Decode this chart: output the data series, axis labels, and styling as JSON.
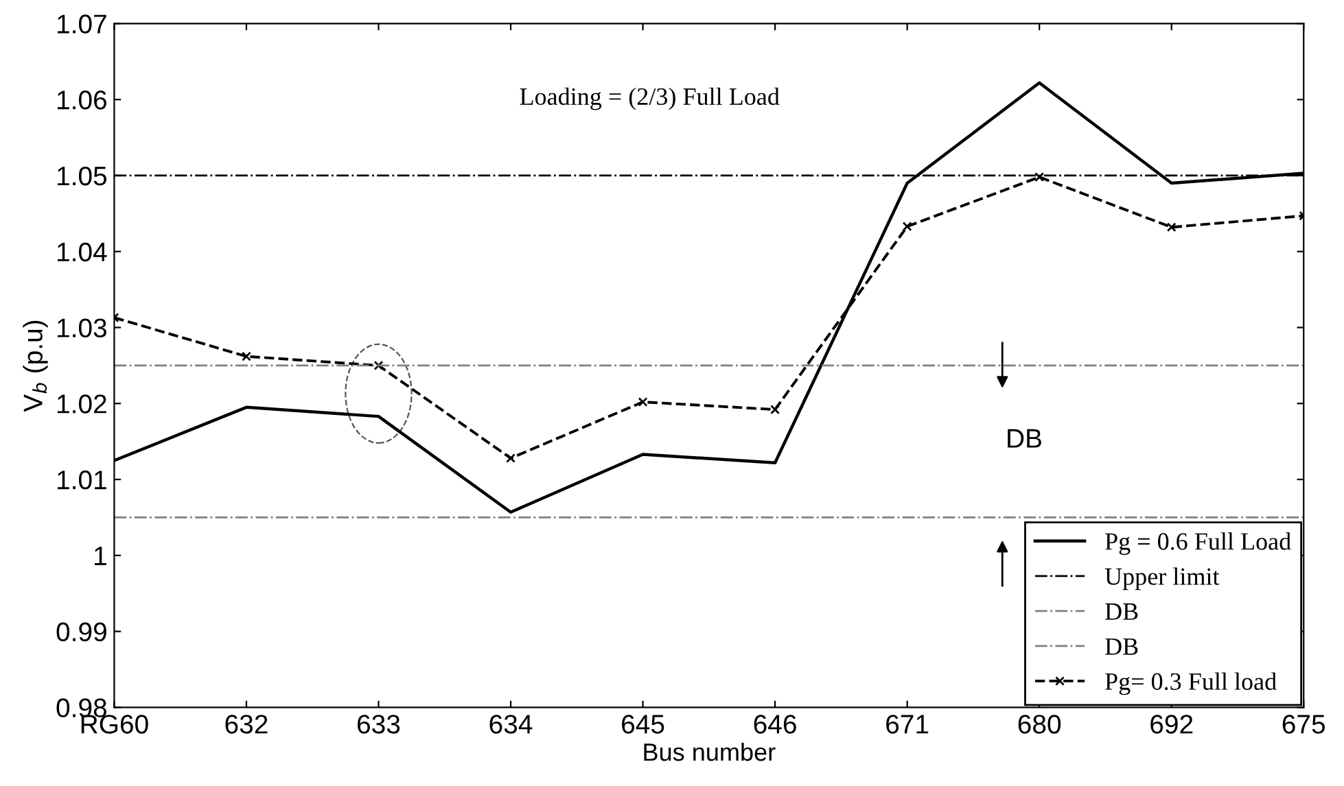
{
  "chart_data": {
    "type": "line",
    "xlabel": "Bus number",
    "ylabel": "V$_{b}$ (p.u)",
    "categories": [
      "RG60",
      "632",
      "633",
      "634",
      "645",
      "646",
      "671",
      "680",
      "692",
      "675"
    ],
    "series": [
      {
        "name": "Pg = 0.6 Full Load",
        "color": "#000000",
        "line_style": "solid",
        "marker": "none",
        "values": [
          1.0125,
          1.0195,
          1.0183,
          1.0057,
          1.0133,
          1.0122,
          1.049,
          1.0622,
          1.049,
          1.0503
        ]
      },
      {
        "name": "Pg= 0.3 Full load",
        "color": "#000000",
        "line_style": "dashed",
        "marker": "cross",
        "values": [
          1.0313,
          1.0262,
          1.025,
          1.0128,
          1.0202,
          1.0192,
          1.0433,
          1.0498,
          1.0432,
          1.0447
        ]
      }
    ],
    "ref_lines": [
      {
        "axis": "y",
        "value": 1.05,
        "label": "Upper limit",
        "color": "#000000",
        "line_style": "dashdot"
      },
      {
        "axis": "y",
        "value": 1.025,
        "label": "DB",
        "color": "#808080",
        "line_style": "dashdot"
      },
      {
        "axis": "y",
        "value": 1.005,
        "label": "DB",
        "color": "#808080",
        "line_style": "dashdot"
      }
    ],
    "annotations": [
      "Loading = (2/3) Full Load",
      "DB"
    ],
    "ylim": [
      0.98,
      1.07
    ],
    "yticks": [
      0.98,
      0.99,
      {
        "value": 1.0,
        "label": "1"
      },
      1.01,
      1.02,
      1.03,
      1.04,
      1.05,
      1.06,
      1.07
    ],
    "grid": false,
    "legend": "bottom right"
  }
}
